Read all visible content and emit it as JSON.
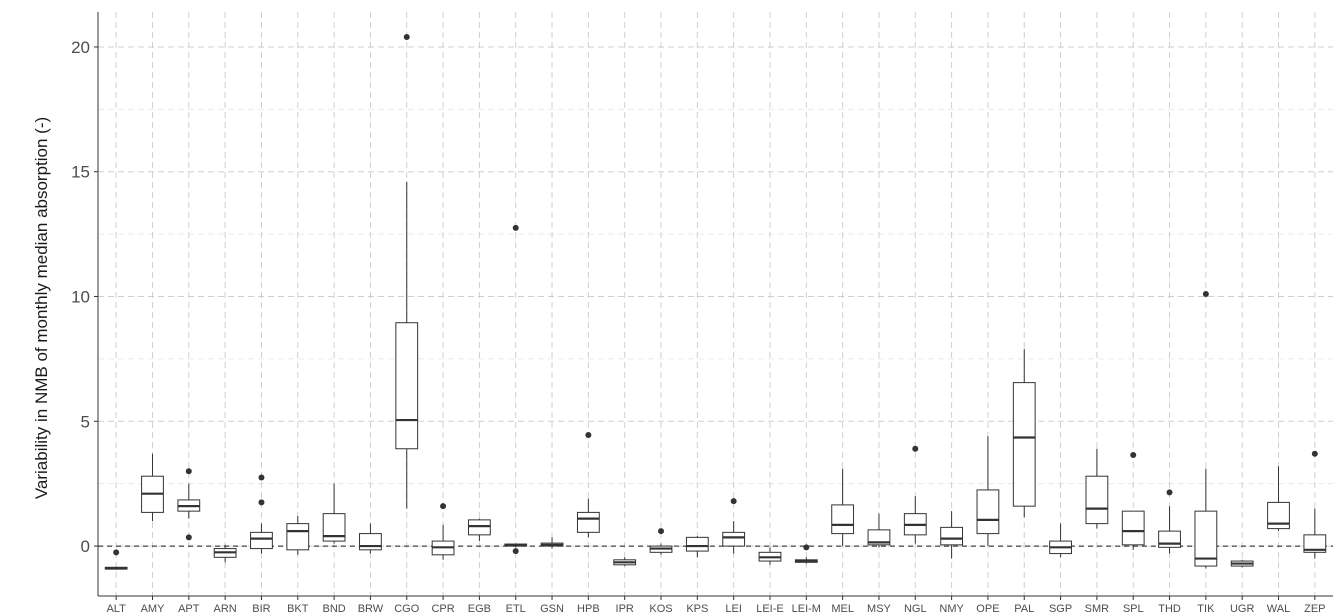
{
  "chart_data": {
    "type": "box",
    "ylabel": "Variability in NMB of monthly median absorption (-)",
    "xlabel": "",
    "ylim": [
      -2.0,
      21.4
    ],
    "yticks": [
      0,
      5,
      10,
      15,
      20
    ],
    "grid": true,
    "reference_line": 0,
    "categories": [
      "ALT",
      "AMY",
      "APT",
      "ARN",
      "BIR",
      "BKT",
      "BND",
      "BRW",
      "CGO",
      "CPR",
      "EGB",
      "ETL",
      "GSN",
      "HPB",
      "IPR",
      "KOS",
      "KPS",
      "LEI",
      "LEI-E",
      "LEI-M",
      "MEL",
      "MSY",
      "NGL",
      "NMY",
      "OPE",
      "PAL",
      "SGP",
      "SMR",
      "SPL",
      "THD",
      "TIK",
      "UGR",
      "WAL",
      "ZEP"
    ],
    "boxes": [
      {
        "min": -0.95,
        "q1": -0.92,
        "median": -0.9,
        "q3": -0.85,
        "max": -0.82,
        "outliers": [
          -0.25
        ]
      },
      {
        "min": 1.0,
        "q1": 1.35,
        "median": 2.1,
        "q3": 2.8,
        "max": 3.7,
        "outliers": []
      },
      {
        "min": 1.1,
        "q1": 1.4,
        "median": 1.6,
        "q3": 1.85,
        "max": 2.5,
        "outliers": [
          3.0,
          0.35
        ]
      },
      {
        "min": -0.65,
        "q1": -0.45,
        "median": -0.25,
        "q3": -0.1,
        "max": 0.05,
        "outliers": []
      },
      {
        "min": -0.3,
        "q1": -0.1,
        "median": 0.3,
        "q3": 0.55,
        "max": 0.9,
        "outliers": [
          2.75,
          1.75
        ]
      },
      {
        "min": -0.35,
        "q1": -0.15,
        "median": 0.6,
        "q3": 0.9,
        "max": 1.2,
        "outliers": []
      },
      {
        "min": 0.1,
        "q1": 0.2,
        "median": 0.4,
        "q3": 1.3,
        "max": 2.5,
        "outliers": []
      },
      {
        "min": -0.3,
        "q1": -0.15,
        "median": 0.0,
        "q3": 0.5,
        "max": 0.9,
        "outliers": []
      },
      {
        "min": 1.5,
        "q1": 3.9,
        "median": 5.05,
        "q3": 8.95,
        "max": 14.6,
        "outliers": [
          20.4
        ]
      },
      {
        "min": -0.55,
        "q1": -0.35,
        "median": -0.05,
        "q3": 0.2,
        "max": 0.85,
        "outliers": [
          1.6
        ]
      },
      {
        "min": 0.2,
        "q1": 0.45,
        "median": 0.8,
        "q3": 1.05,
        "max": 1.1,
        "outliers": []
      },
      {
        "min": -0.05,
        "q1": 0.0,
        "median": 0.05,
        "q3": 0.08,
        "max": 0.1,
        "outliers": [
          12.75,
          -0.2
        ]
      },
      {
        "min": -0.1,
        "q1": 0.0,
        "median": 0.05,
        "q3": 0.12,
        "max": 0.35,
        "outliers": []
      },
      {
        "min": 0.35,
        "q1": 0.55,
        "median": 1.1,
        "q3": 1.35,
        "max": 1.9,
        "outliers": [
          4.45
        ]
      },
      {
        "min": -0.8,
        "q1": -0.75,
        "median": -0.65,
        "q3": -0.55,
        "max": -0.45,
        "outliers": []
      },
      {
        "min": -0.35,
        "q1": -0.25,
        "median": -0.1,
        "q3": 0.0,
        "max": 0.1,
        "outliers": [
          0.6
        ]
      },
      {
        "min": -0.45,
        "q1": -0.2,
        "median": 0.0,
        "q3": 0.35,
        "max": 0.4,
        "outliers": []
      },
      {
        "min": -0.3,
        "q1": 0.0,
        "median": 0.35,
        "q3": 0.55,
        "max": 1.0,
        "outliers": [
          1.8
        ]
      },
      {
        "min": -0.75,
        "q1": -0.6,
        "median": -0.45,
        "q3": -0.25,
        "max": -0.05,
        "outliers": []
      },
      {
        "min": -0.7,
        "q1": -0.65,
        "median": -0.6,
        "q3": -0.55,
        "max": -0.45,
        "outliers": [
          -0.05
        ]
      },
      {
        "min": 0.0,
        "q1": 0.5,
        "median": 0.85,
        "q3": 1.65,
        "max": 3.1,
        "outliers": []
      },
      {
        "min": -0.05,
        "q1": 0.05,
        "median": 0.15,
        "q3": 0.65,
        "max": 1.3,
        "outliers": []
      },
      {
        "min": 0.1,
        "q1": 0.45,
        "median": 0.85,
        "q3": 1.3,
        "max": 2.0,
        "outliers": [
          3.9
        ]
      },
      {
        "min": -0.5,
        "q1": 0.05,
        "median": 0.3,
        "q3": 0.75,
        "max": 1.4,
        "outliers": []
      },
      {
        "min": 0.0,
        "q1": 0.5,
        "median": 1.05,
        "q3": 2.25,
        "max": 4.4,
        "outliers": []
      },
      {
        "min": 1.15,
        "q1": 1.6,
        "median": 4.35,
        "q3": 6.55,
        "max": 7.9,
        "outliers": []
      },
      {
        "min": -0.45,
        "q1": -0.3,
        "median": -0.05,
        "q3": 0.2,
        "max": 0.9,
        "outliers": []
      },
      {
        "min": 0.7,
        "q1": 0.9,
        "median": 1.5,
        "q3": 2.8,
        "max": 3.9,
        "outliers": []
      },
      {
        "min": -0.15,
        "q1": 0.05,
        "median": 0.6,
        "q3": 1.4,
        "max": 1.4,
        "outliers": [
          3.65
        ]
      },
      {
        "min": -0.3,
        "q1": -0.05,
        "median": 0.1,
        "q3": 0.6,
        "max": 1.6,
        "outliers": [
          2.15
        ]
      },
      {
        "min": -0.9,
        "q1": -0.8,
        "median": -0.5,
        "q3": 1.4,
        "max": 3.1,
        "outliers": [
          10.1
        ]
      },
      {
        "min": -0.85,
        "q1": -0.8,
        "median": -0.7,
        "q3": -0.6,
        "max": -0.55,
        "outliers": []
      },
      {
        "min": 0.6,
        "q1": 0.7,
        "median": 0.9,
        "q3": 1.75,
        "max": 3.2,
        "outliers": []
      },
      {
        "min": -0.5,
        "q1": -0.25,
        "median": -0.15,
        "q3": 0.45,
        "max": 1.5,
        "outliers": [
          3.7
        ]
      }
    ]
  }
}
